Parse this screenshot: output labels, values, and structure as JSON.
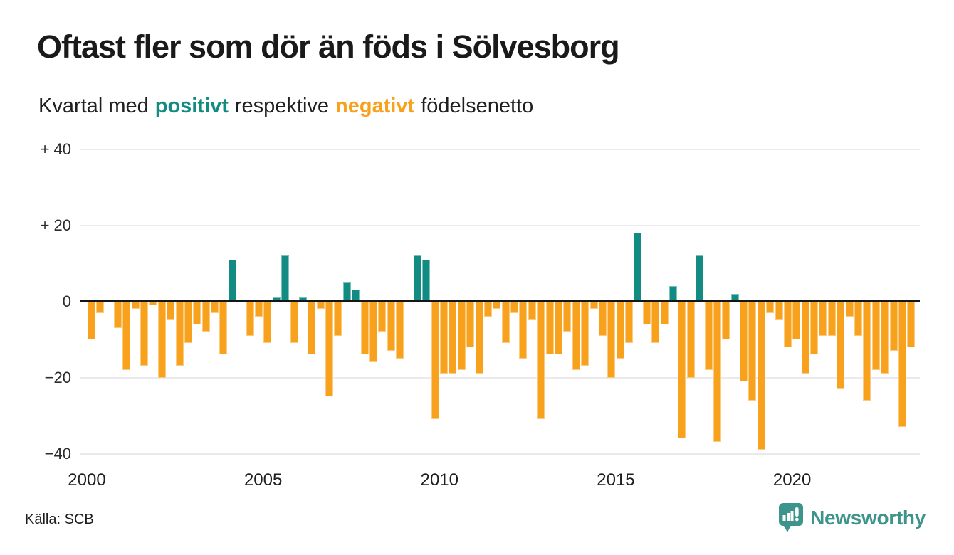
{
  "title": "Oftast fler som dör än föds i Sölvesborg",
  "subtitle": {
    "prefix": "Kvartal med",
    "positive_word": "positivt",
    "middle": "respektive",
    "negative_word": "negativt",
    "suffix": "födelsenetto"
  },
  "source": "Källa: SCB",
  "logo": {
    "text": "Newsworthy",
    "icon": "newsworthy-speech-bubble-bar-chart-icon"
  },
  "colors": {
    "positive": "#128C82",
    "negative": "#F7A11C",
    "logo": "#3D948B",
    "grid": "#E9E9EE",
    "zero_line": "#151515",
    "title_text": "#1A1A1A"
  },
  "chart_data": {
    "type": "bar",
    "title": "Oftast fler som dör än föds i Sölvesborg",
    "subtitle": "Kvartal med positivt respektive negativt födelsenetto",
    "xlabel": "",
    "ylabel": "",
    "x_start": "2000-Q1",
    "x_end": "2023-Q2",
    "grid": true,
    "legend": "none",
    "ylim": [
      -42,
      42
    ],
    "positive_color": "#128C82",
    "negative_color": "#F7A11C",
    "yticks": [
      {
        "value": 40,
        "label": "+ 40"
      },
      {
        "value": 20,
        "label": "+ 20"
      },
      {
        "value": 0,
        "label": "0"
      },
      {
        "value": -20,
        "label": "−20"
      },
      {
        "value": -40,
        "label": "−40"
      }
    ],
    "xticks": [
      {
        "quarter_index": 0,
        "label": "2000"
      },
      {
        "quarter_index": 20,
        "label": "2005"
      },
      {
        "quarter_index": 40,
        "label": "2010"
      },
      {
        "quarter_index": 60,
        "label": "2015"
      },
      {
        "quarter_index": 80,
        "label": "2020"
      }
    ],
    "quarterly_values_by_year": {
      "2000": [
        -10,
        -3,
        0,
        -7
      ],
      "2001": [
        -18,
        -2,
        -17,
        -1
      ],
      "2002": [
        -20,
        -5,
        -17,
        -11
      ],
      "2003": [
        -6,
        -8,
        -3,
        -14
      ],
      "2004": [
        11,
        0,
        -9,
        -4
      ],
      "2005": [
        -11,
        1,
        12,
        -11
      ],
      "2006": [
        1,
        -14,
        -2,
        -25
      ],
      "2007": [
        -9,
        5,
        3,
        -14
      ],
      "2008": [
        -16,
        -8,
        -13,
        -15
      ],
      "2009": [
        0,
        12,
        11,
        -31
      ],
      "2010": [
        -19,
        -19,
        -18,
        -12
      ],
      "2011": [
        -19,
        -4,
        -2,
        -11
      ],
      "2012": [
        -3,
        -15,
        -5,
        -31
      ],
      "2013": [
        -14,
        -14,
        -8,
        -18
      ],
      "2014": [
        -17,
        -2,
        -9,
        -20
      ],
      "2015": [
        -15,
        -11,
        18,
        -6
      ],
      "2016": [
        -11,
        -6,
        4,
        -36
      ],
      "2017": [
        -20,
        12,
        -18,
        -37
      ],
      "2018": [
        -10,
        2,
        -21,
        -26
      ],
      "2019": [
        -39,
        -3,
        -5,
        -12
      ],
      "2020": [
        -10,
        -19,
        -14,
        -9
      ],
      "2021": [
        -9,
        -23,
        -4,
        -9
      ],
      "2022": [
        -26,
        -18,
        -19,
        -13
      ],
      "2023": [
        -33,
        -12
      ]
    }
  }
}
